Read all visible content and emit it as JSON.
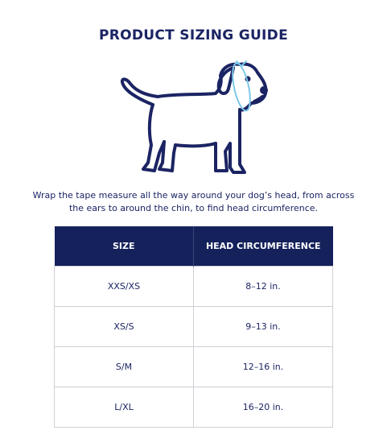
{
  "header": {
    "title": "PRODUCT SIZING GUIDE"
  },
  "instructions": "Wrap the tape measure all the way around your dog’s head, from across the ears to around the chin, to find head circumference.",
  "table": {
    "columns": [
      "SIZE",
      "HEAD CIRCUMFERENCE"
    ],
    "rows": [
      [
        "XXS/XS",
        "8–12 in."
      ],
      [
        "XS/S",
        "9–13 in."
      ],
      [
        "S/M",
        "12–16 in."
      ],
      [
        "L/XL",
        "16–20 in."
      ]
    ]
  }
}
